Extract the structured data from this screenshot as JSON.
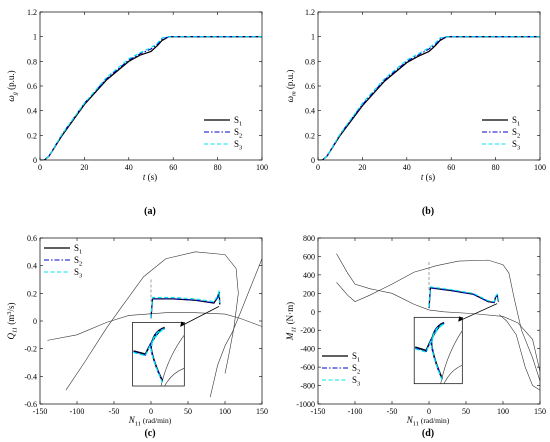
{
  "chart_data": [
    {
      "panel": "(a)",
      "type": "line",
      "ylabel": "ω_g (p.u.)",
      "xlabel": "t (s)",
      "xlim": [
        0,
        100
      ],
      "ylim": [
        0,
        1.2
      ],
      "xticks": [
        "0",
        "20",
        "40",
        "60",
        "80",
        "100"
      ],
      "yticks": [
        "0",
        "0.2",
        "0.4",
        "0.6",
        "0.8",
        "1",
        "1.2"
      ],
      "legend_position": "bottom-right",
      "series": [
        {
          "name": "S1",
          "style": "solid",
          "color": "#000000",
          "x": [
            0,
            2,
            4,
            10,
            20,
            30,
            40,
            45,
            50,
            53,
            55,
            58,
            60,
            100
          ],
          "y": [
            0,
            0,
            0.03,
            0.2,
            0.45,
            0.65,
            0.8,
            0.85,
            0.88,
            0.93,
            0.97,
            1.0,
            1.0,
            1.0
          ]
        },
        {
          "name": "S2",
          "style": "dashdot",
          "color": "#0000cc",
          "x": [
            0,
            2,
            4,
            10,
            20,
            30,
            40,
            45,
            50,
            53,
            55,
            58,
            60,
            100
          ],
          "y": [
            0,
            0,
            0.03,
            0.21,
            0.46,
            0.66,
            0.81,
            0.86,
            0.9,
            0.94,
            0.98,
            1.0,
            1.0,
            1.0
          ]
        },
        {
          "name": "S3",
          "style": "dashed",
          "color": "#00e5ee",
          "x": [
            0,
            2,
            4,
            10,
            20,
            30,
            40,
            45,
            50,
            53,
            55,
            58,
            60,
            100
          ],
          "y": [
            0,
            0,
            0.03,
            0.21,
            0.46,
            0.67,
            0.82,
            0.87,
            0.91,
            0.95,
            0.99,
            1.0,
            1.0,
            1.0
          ]
        }
      ]
    },
    {
      "panel": "(b)",
      "type": "line",
      "ylabel": "ω_m (p.u.)",
      "xlabel": "t (s)",
      "xlim": [
        0,
        100
      ],
      "ylim": [
        0,
        1.2
      ],
      "xticks": [
        "0",
        "20",
        "40",
        "60",
        "80",
        "100"
      ],
      "yticks": [
        "0",
        "0.2",
        "0.4",
        "0.6",
        "0.8",
        "1",
        "1.2"
      ],
      "legend_position": "bottom-right",
      "series": [
        {
          "name": "S1",
          "style": "solid",
          "color": "#000000",
          "x": [
            0,
            2,
            4,
            10,
            20,
            30,
            40,
            45,
            50,
            53,
            55,
            58,
            60,
            100
          ],
          "y": [
            0,
            0,
            0.03,
            0.2,
            0.44,
            0.64,
            0.79,
            0.84,
            0.88,
            0.93,
            0.97,
            1.0,
            1.0,
            1.0
          ]
        },
        {
          "name": "S2",
          "style": "dashdot",
          "color": "#0000cc",
          "x": [
            0,
            2,
            4,
            10,
            20,
            30,
            40,
            45,
            50,
            53,
            55,
            58,
            60,
            100
          ],
          "y": [
            0,
            0,
            0.03,
            0.21,
            0.45,
            0.65,
            0.8,
            0.85,
            0.9,
            0.94,
            0.98,
            1.0,
            1.0,
            1.0
          ]
        },
        {
          "name": "S3",
          "style": "dashed",
          "color": "#00e5ee",
          "x": [
            0,
            2,
            4,
            10,
            20,
            30,
            40,
            45,
            50,
            53,
            55,
            58,
            60,
            100
          ],
          "y": [
            0,
            0,
            0.03,
            0.21,
            0.46,
            0.66,
            0.81,
            0.86,
            0.91,
            0.95,
            0.99,
            1.0,
            1.0,
            1.0
          ]
        }
      ]
    },
    {
      "panel": "(c)",
      "type": "line",
      "ylabel": "Q_11 (m³/s)",
      "xlabel": "N_11 (rad/min)",
      "xlim": [
        -150,
        150
      ],
      "ylim": [
        -0.6,
        0.6
      ],
      "xticks": [
        "-150",
        "-100",
        "-50",
        "0",
        "50",
        "100",
        "150"
      ],
      "yticks": [
        "-0.6",
        "-0.4",
        "-0.2",
        "0",
        "0.2",
        "0.4",
        "0.6"
      ],
      "legend_position": "top-left",
      "boundary_curves": [
        {
          "x": [
            -140,
            -100,
            -60,
            -30,
            -5,
            20,
            60,
            100,
            120,
            140,
            150
          ],
          "y": [
            -0.14,
            -0.1,
            -0.01,
            0.04,
            0.05,
            0.06,
            0.06,
            0.05,
            0.02,
            -0.02,
            -0.04
          ]
        },
        {
          "x": [
            -115,
            -90,
            -60,
            -40,
            -10,
            20,
            60,
            100,
            115,
            118,
            112,
            105,
            100
          ],
          "y": [
            -0.5,
            -0.3,
            -0.05,
            0.1,
            0.32,
            0.45,
            0.5,
            0.48,
            0.38,
            0.2,
            -0.05,
            -0.25,
            -0.38
          ]
        },
        {
          "x": [
            80,
            90,
            100,
            110,
            120,
            135,
            150
          ],
          "y": [
            -0.55,
            -0.32,
            -0.18,
            -0.08,
            0.05,
            0.25,
            0.45
          ]
        }
      ],
      "reference_line": {
        "x": 0,
        "y0": 0.3,
        "y1": 0.14
      },
      "inset": {
        "x": [
          -25,
          45
        ],
        "y": [
          -0.47,
          -0.01
        ]
      },
      "series": [
        {
          "name": "S1",
          "style": "solid",
          "color": "#000000",
          "x": [
            0,
            2,
            30,
            60,
            85,
            90,
            92,
            93
          ],
          "y": [
            0.02,
            0.16,
            0.16,
            0.15,
            0.13,
            0.17,
            0.21,
            0.12
          ]
        },
        {
          "name": "S2",
          "style": "dashdot",
          "color": "#0000cc",
          "x": [
            0,
            2,
            30,
            60,
            85,
            90,
            92,
            93
          ],
          "y": [
            0.02,
            0.16,
            0.16,
            0.15,
            0.13,
            0.17,
            0.21,
            0.12
          ]
        },
        {
          "name": "S3",
          "style": "dashed",
          "color": "#00e5ee",
          "x": [
            0,
            2,
            30,
            60,
            85,
            90,
            92,
            93
          ],
          "y": [
            0.02,
            0.17,
            0.17,
            0.16,
            0.14,
            0.18,
            0.22,
            0.13
          ]
        }
      ]
    },
    {
      "panel": "(d)",
      "type": "line",
      "ylabel": "M_11 (N·m)",
      "xlabel": "N_11 (rad/min)",
      "xlim": [
        -150,
        150
      ],
      "ylim": [
        -1000,
        800
      ],
      "xticks": [
        "-150",
        "-100",
        "-50",
        "0",
        "50",
        "100",
        "150"
      ],
      "yticks": [
        "-1000",
        "-800",
        "-600",
        "-400",
        "-200",
        "0",
        "200",
        "400",
        "600",
        "800"
      ],
      "legend_position": "bottom-left",
      "boundary_curves": [
        {
          "x": [
            -125,
            -110,
            -100,
            -80,
            -50,
            -20,
            0,
            20,
            60,
            100,
            120,
            140,
            150
          ],
          "y": [
            630,
            420,
            300,
            250,
            200,
            80,
            20,
            0,
            -20,
            -50,
            -120,
            -300,
            -650
          ]
        },
        {
          "x": [
            -125,
            -110,
            -100,
            -80,
            -50,
            -20,
            10,
            40,
            80,
            100,
            108,
            115,
            125,
            140,
            150
          ],
          "y": [
            320,
            180,
            110,
            180,
            300,
            430,
            500,
            550,
            560,
            510,
            420,
            150,
            -200,
            -500,
            -750
          ]
        },
        {
          "x": [
            95,
            105,
            118,
            130,
            140,
            150
          ],
          "y": [
            -30,
            -100,
            -250,
            -600,
            -800,
            -850
          ]
        }
      ],
      "reference_line": {
        "x": 0,
        "y0": 540,
        "y1": 230
      },
      "inset": {
        "x": [
          -20,
          45
        ],
        "y": [
          -780,
          -60
        ]
      },
      "series": [
        {
          "name": "S1",
          "style": "solid",
          "color": "#000000",
          "x": [
            0,
            2,
            30,
            60,
            80,
            88,
            90,
            92,
            94
          ],
          "y": [
            40,
            260,
            230,
            190,
            110,
            100,
            160,
            180,
            110
          ]
        },
        {
          "name": "S2",
          "style": "dashdot",
          "color": "#0000cc",
          "x": [
            0,
            2,
            30,
            60,
            80,
            88,
            90,
            92,
            94
          ],
          "y": [
            40,
            260,
            230,
            190,
            110,
            100,
            160,
            180,
            110
          ]
        },
        {
          "name": "S3",
          "style": "dashed",
          "color": "#00e5ee",
          "x": [
            0,
            2,
            30,
            60,
            80,
            88,
            90,
            92,
            94
          ],
          "y": [
            50,
            270,
            240,
            200,
            120,
            110,
            170,
            190,
            120
          ]
        }
      ]
    }
  ]
}
